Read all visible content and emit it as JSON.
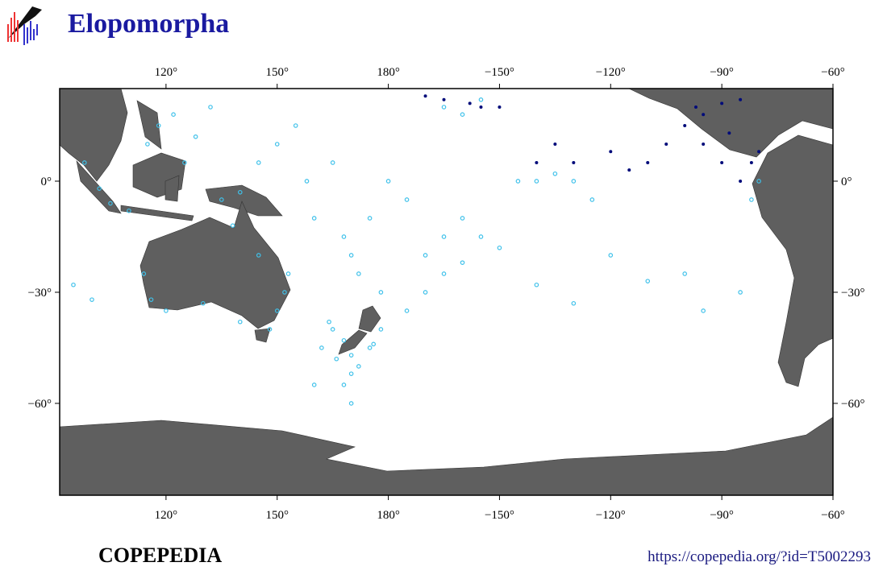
{
  "header": {
    "title": "Elopomorpha"
  },
  "map": {
    "xlim": [
      91.3,
      -60
    ],
    "ylim": [
      -84.8,
      25
    ],
    "xticks": [
      {
        "value": 120,
        "label": "120°"
      },
      {
        "value": 150,
        "label": "150°"
      },
      {
        "value": 180,
        "label": "180°"
      },
      {
        "value": -150,
        "label": "−150°"
      },
      {
        "value": -120,
        "label": "−120°"
      },
      {
        "value": -90,
        "label": "−90°"
      },
      {
        "value": -60,
        "label": "−60°"
      }
    ],
    "yticks": [
      {
        "value": 0,
        "label": "0°"
      },
      {
        "value": -30,
        "label": "−30°"
      },
      {
        "value": -60,
        "label": "−60°"
      }
    ],
    "occurrences": [
      {
        "color": "#3fc1ea",
        "lon": [
          98,
          102,
          105,
          110,
          115,
          118,
          122,
          125,
          128,
          132,
          135,
          140,
          145,
          150,
          155,
          158,
          160,
          165,
          168,
          170,
          172,
          175,
          178,
          180,
          185,
          190,
          195,
          200,
          205,
          210,
          215,
          220,
          225,
          230,
          235,
          240,
          114,
          116,
          120,
          130,
          140,
          148,
          152,
          153,
          150,
          145,
          138,
          165,
          168,
          170,
          172,
          175,
          170,
          168,
          176,
          178,
          185,
          190,
          195,
          200,
          -140,
          -130,
          -110,
          -100,
          -95,
          -85,
          -80,
          -82,
          95,
          100,
          160,
          162,
          164,
          166,
          170,
          -165,
          -160,
          -155
        ],
        "lat": [
          5,
          -2,
          -6,
          -8,
          10,
          15,
          18,
          5,
          12,
          20,
          -5,
          -3,
          5,
          10,
          15,
          0,
          -10,
          5,
          -15,
          -20,
          -25,
          -10,
          -30,
          0,
          -5,
          -20,
          -15,
          -10,
          -15,
          -18,
          0,
          0,
          2,
          0,
          -5,
          -20,
          -25,
          -32,
          -35,
          -33,
          -38,
          -40,
          -30,
          -25,
          -35,
          -20,
          -12,
          -40,
          -43,
          -47,
          -50,
          -45,
          -52,
          -55,
          -44,
          -40,
          -35,
          -30,
          -25,
          -22,
          -28,
          -33,
          -27,
          -25,
          -35,
          -30,
          0,
          -5,
          -28,
          -32,
          -55,
          -45,
          -38,
          -48,
          -60,
          20,
          18,
          22
        ]
      },
      {
        "color": "#000b7a",
        "lon": [
          -100,
          -95,
          -90,
          -85,
          -105,
          -110,
          -120,
          -130,
          -140,
          -150,
          -158,
          -155,
          -80,
          -82,
          -88,
          -95,
          -90,
          -85,
          -97,
          -115,
          -135,
          -170,
          -165
        ],
        "lat": [
          15,
          10,
          5,
          0,
          10,
          5,
          8,
          5,
          5,
          20,
          21,
          20,
          8,
          5,
          13,
          18,
          21,
          22,
          20,
          3,
          10,
          23,
          22
        ]
      }
    ]
  },
  "footer": {
    "brand": "COPEPEDIA",
    "url": "https://copepedia.org/?id=T5002293"
  }
}
